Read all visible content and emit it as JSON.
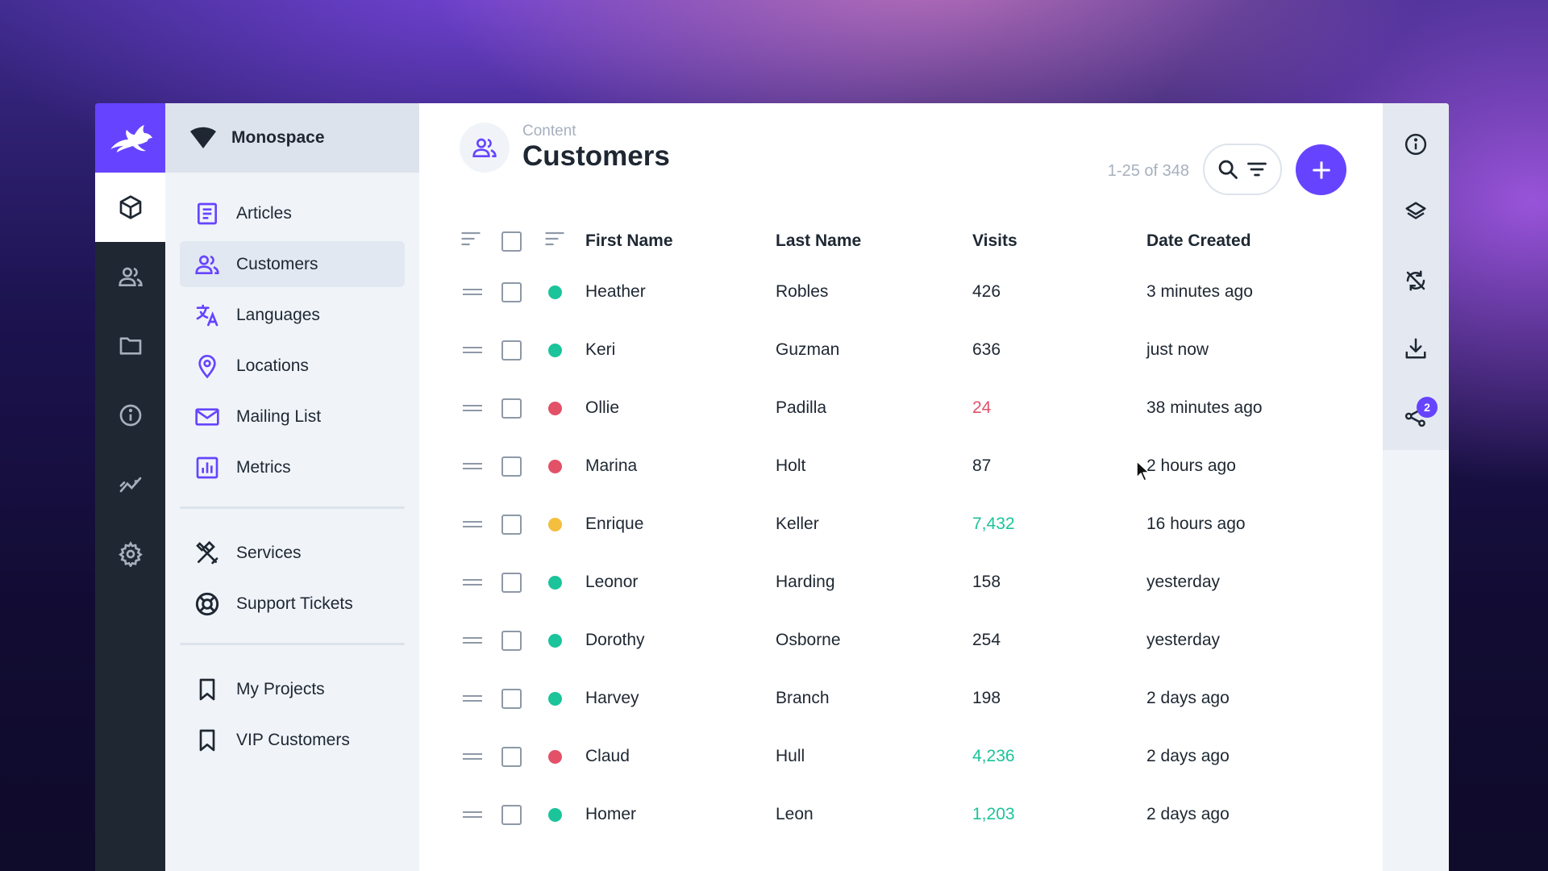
{
  "project": {
    "name": "Monospace"
  },
  "nav": {
    "group1": [
      {
        "label": "Articles",
        "icon": "article-icon"
      },
      {
        "label": "Customers",
        "icon": "people-icon",
        "active": true
      },
      {
        "label": "Languages",
        "icon": "translate-icon"
      },
      {
        "label": "Locations",
        "icon": "location-pin-icon"
      },
      {
        "label": "Mailing List",
        "icon": "mail-icon"
      },
      {
        "label": "Metrics",
        "icon": "chart-icon"
      }
    ],
    "group2": [
      {
        "label": "Services",
        "icon": "tools-icon"
      },
      {
        "label": "Support Tickets",
        "icon": "lifebuoy-icon"
      }
    ],
    "group3": [
      {
        "label": "My Projects",
        "icon": "bookmark-icon"
      },
      {
        "label": "VIP Customers",
        "icon": "bookmark-icon"
      }
    ]
  },
  "header": {
    "breadcrumb": "Content",
    "title": "Customers",
    "count": "1-25 of 348"
  },
  "table": {
    "columns": [
      "First Name",
      "Last Name",
      "Visits",
      "Date Created"
    ],
    "rows": [
      {
        "first": "Heather",
        "last": "Robles",
        "visits": "426",
        "date": "3 minutes ago",
        "status": "green",
        "visits_color": "default"
      },
      {
        "first": "Keri",
        "last": "Guzman",
        "visits": "636",
        "date": "just now",
        "status": "green",
        "visits_color": "default"
      },
      {
        "first": "Ollie",
        "last": "Padilla",
        "visits": "24",
        "date": "38 minutes ago",
        "status": "red",
        "visits_color": "red"
      },
      {
        "first": "Marina",
        "last": "Holt",
        "visits": "87",
        "date": "2 hours ago",
        "status": "red",
        "visits_color": "default"
      },
      {
        "first": "Enrique",
        "last": "Keller",
        "visits": "7,432",
        "date": "16 hours ago",
        "status": "yellow",
        "visits_color": "green"
      },
      {
        "first": "Leonor",
        "last": "Harding",
        "visits": "158",
        "date": "yesterday",
        "status": "green",
        "visits_color": "default"
      },
      {
        "first": "Dorothy",
        "last": "Osborne",
        "visits": "254",
        "date": "yesterday",
        "status": "green",
        "visits_color": "default"
      },
      {
        "first": "Harvey",
        "last": "Branch",
        "visits": "198",
        "date": "2 days ago",
        "status": "green",
        "visits_color": "default"
      },
      {
        "first": "Claud",
        "last": "Hull",
        "visits": "4,236",
        "date": "2 days ago",
        "status": "red",
        "visits_color": "green"
      },
      {
        "first": "Homer",
        "last": "Leon",
        "visits": "1,203",
        "date": "2 days ago",
        "status": "green",
        "visits_color": "green"
      }
    ]
  },
  "right_sidebar": {
    "share_badge": "2"
  },
  "colors": {
    "accent": "#6644ff",
    "green": "#1bc49a",
    "red": "#e35169",
    "yellow": "#f4be3e",
    "text": "#1e2732"
  }
}
